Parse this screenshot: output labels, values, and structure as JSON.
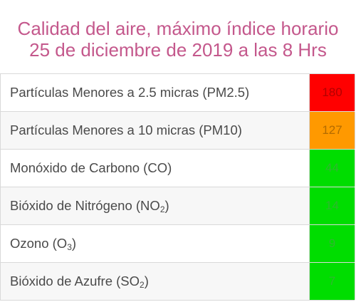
{
  "header": {
    "title_line1": "Calidad del aire, máximo índice horario",
    "title_line2": "25 de diciembre de 2019 a las 8 Hrs"
  },
  "rows": [
    {
      "label": "Partículas Menores a 2.5 micras (PM2.5)",
      "value": "180",
      "color": "#ff0000",
      "text_color": "#b30000"
    },
    {
      "label": "Partículas Menores a 10 micras (PM10)",
      "value": "127",
      "color": "#ff9900",
      "text_color": "#b36b00"
    },
    {
      "label": "Monóxido de Carbono (CO)",
      "value": "44",
      "color": "#00dd00",
      "text_color": "#2fb82f"
    },
    {
      "label_main": "Bióxido de Nitrógeno (NO",
      "label_sub": "2",
      "label_end": ")",
      "value": "14",
      "color": "#00dd00",
      "text_color": "#2fb82f"
    },
    {
      "label_main": "Ozono (O",
      "label_sub": "3",
      "label_end": ")",
      "value": "9",
      "color": "#00dd00",
      "text_color": "#2fb82f"
    },
    {
      "label_main": "Bióxido de Azufre (SO",
      "label_sub": "2",
      "label_end": ")",
      "value": "7",
      "color": "#00dd00",
      "text_color": "#2fb82f"
    }
  ]
}
